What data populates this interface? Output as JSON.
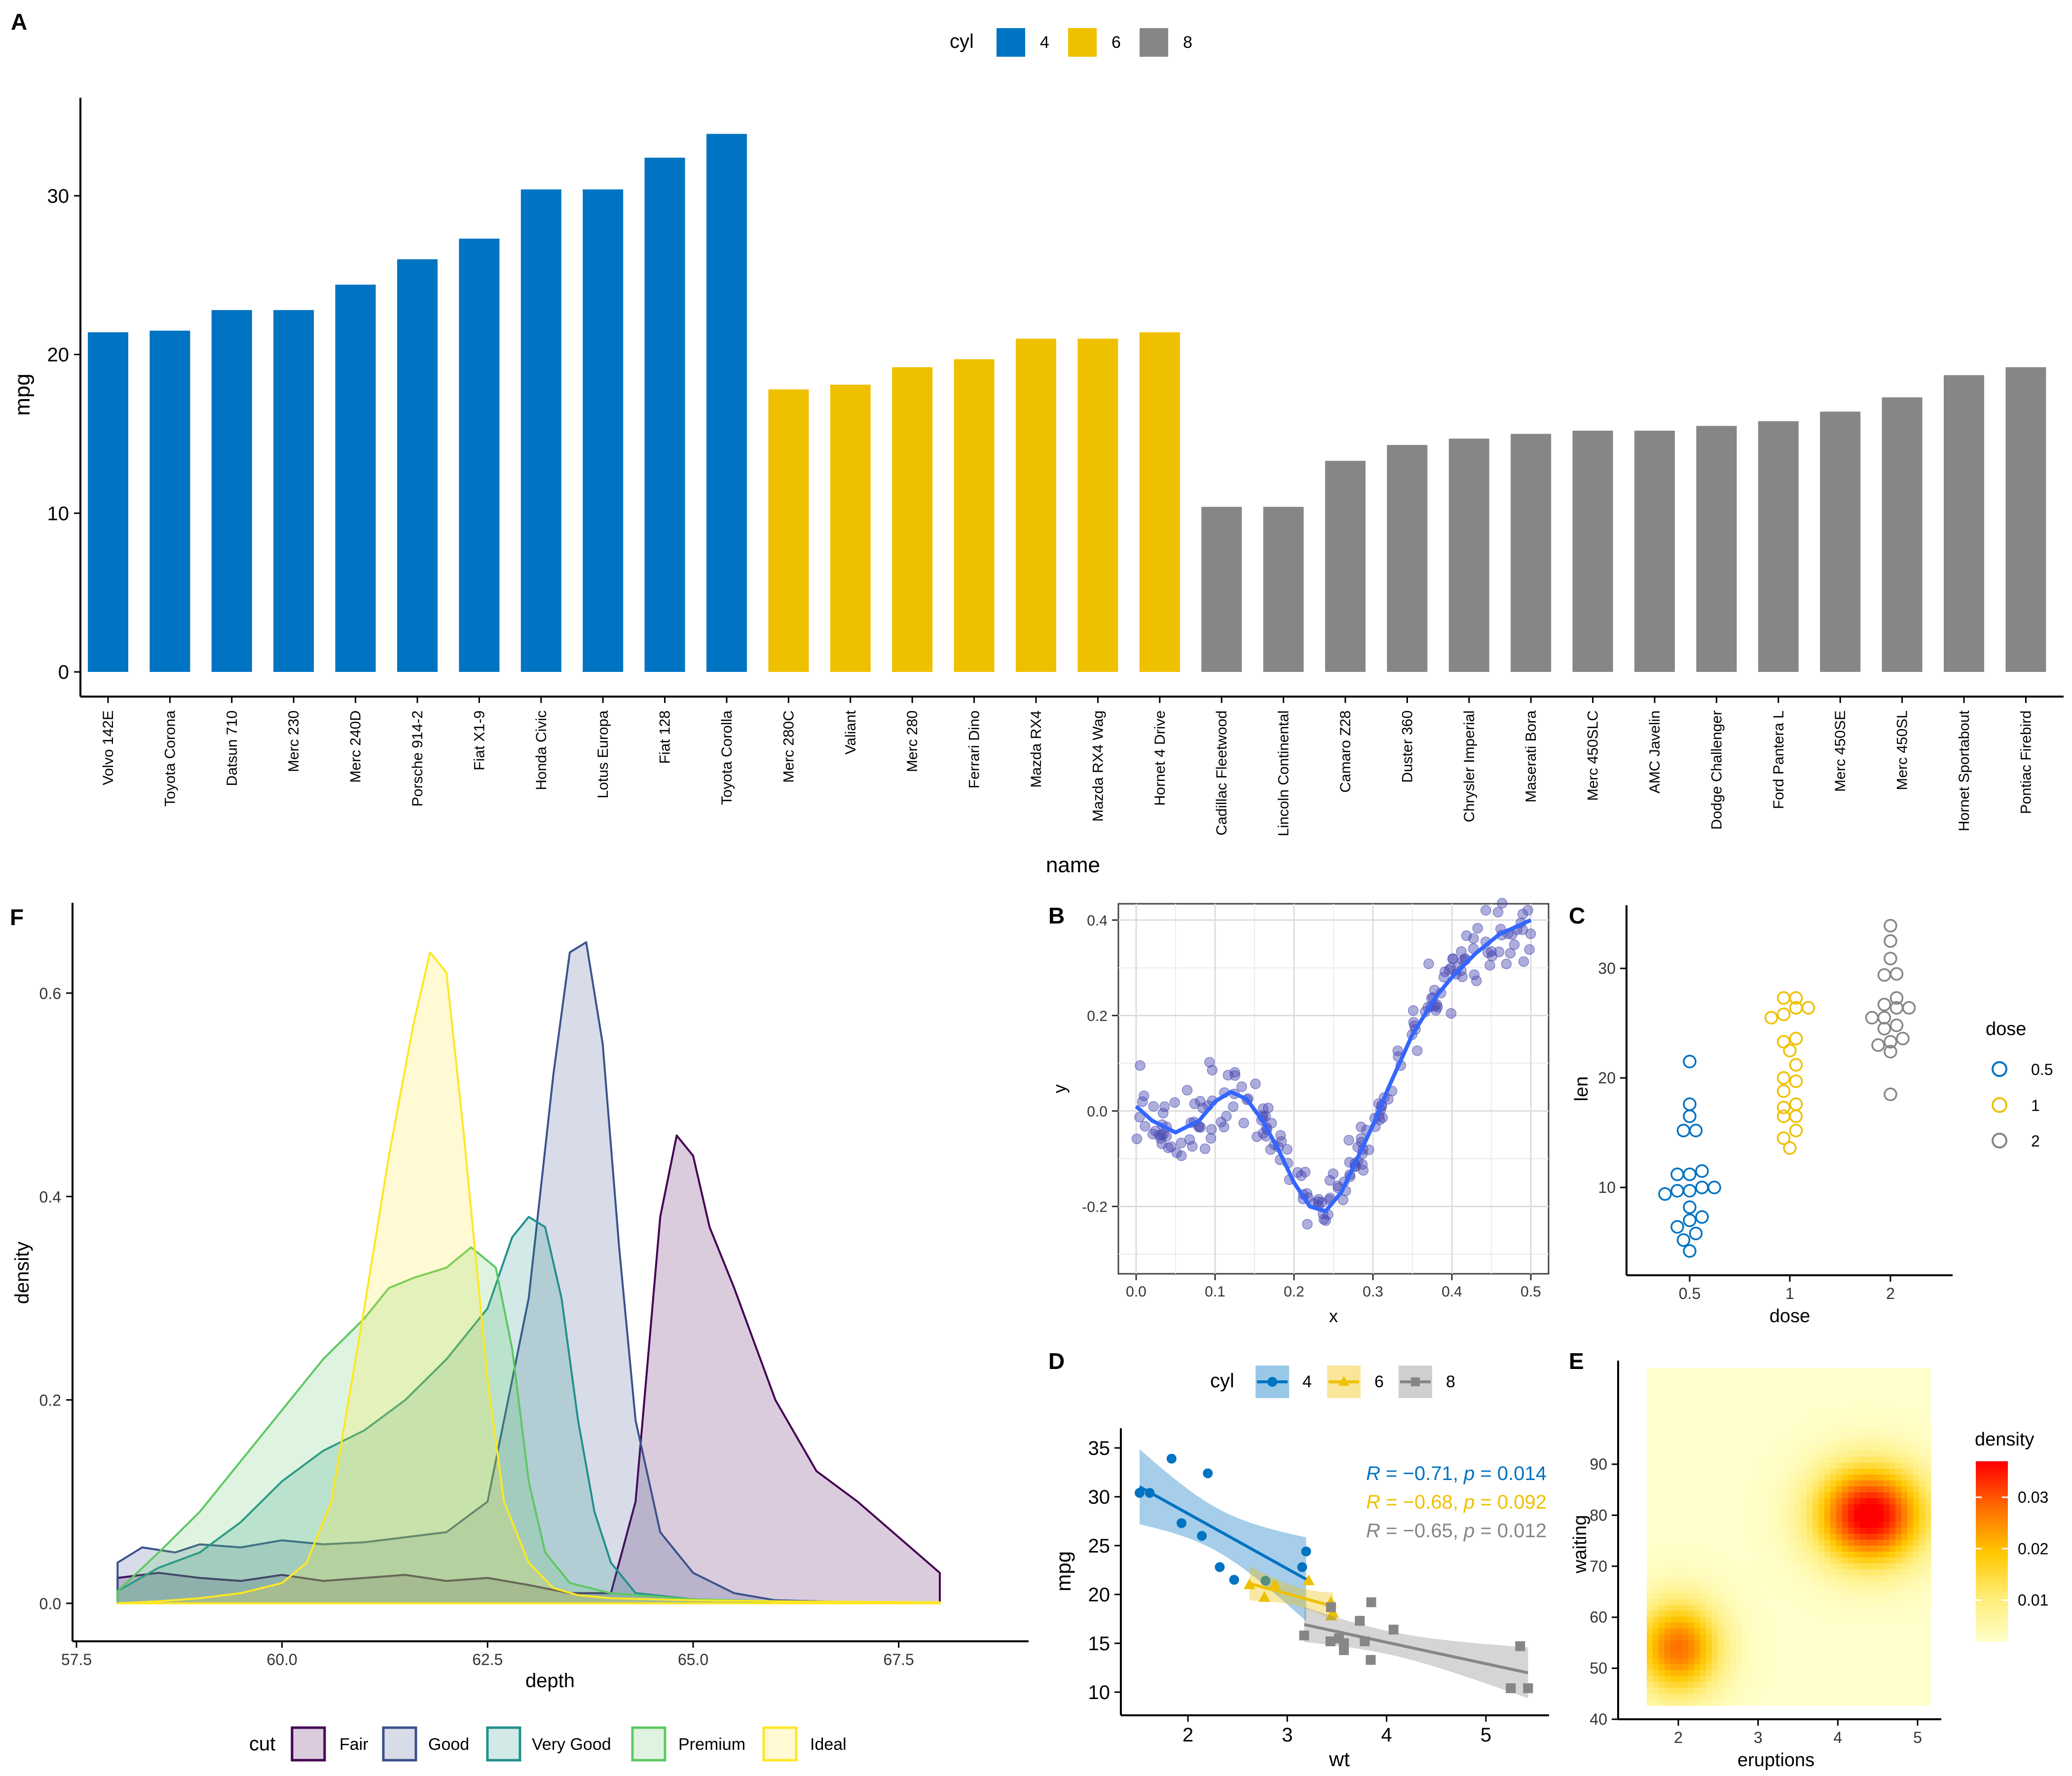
{
  "panels": {
    "A": "A",
    "B": "B",
    "C": "C",
    "D": "D",
    "E": "E",
    "F": "F"
  },
  "colors": {
    "cyl4": "#0073C2",
    "cyl6": "#EFC000",
    "cyl8": "#868686",
    "smooth": "#3366FF",
    "point": "#4B4BB4",
    "fair": "#440154",
    "good": "#3B528B",
    "verygood": "#21908C",
    "premium": "#5DC863",
    "ideal": "#FDE725"
  },
  "chart_data": [
    {
      "panel": "A",
      "type": "bar",
      "xlabel": "name",
      "ylabel": "mpg",
      "ylim": [
        0,
        35
      ],
      "yticks": [
        0,
        10,
        20,
        30
      ],
      "legend": {
        "title": "cyl",
        "position": "top",
        "entries": [
          "4",
          "6",
          "8"
        ]
      },
      "categories": [
        "Volvo 142E",
        "Toyota Corona",
        "Datsun 710",
        "Merc 230",
        "Merc 240D",
        "Porsche 914-2",
        "Fiat X1-9",
        "Honda Civic",
        "Lotus Europa",
        "Fiat 128",
        "Toyota Corolla",
        "Merc 280C",
        "Valiant",
        "Merc 280",
        "Ferrari Dino",
        "Mazda RX4",
        "Mazda RX4 Wag",
        "Hornet 4 Drive",
        "Cadillac Fleetwood",
        "Lincoln Continental",
        "Camaro Z28",
        "Duster 360",
        "Chrysler Imperial",
        "Maserati Bora",
        "Merc 450SLC",
        "AMC Javelin",
        "Dodge Challenger",
        "Ford Pantera L",
        "Merc 450SE",
        "Merc 450SL",
        "Hornet Sportabout",
        "Pontiac Firebird"
      ],
      "values": [
        21.4,
        21.5,
        22.8,
        22.8,
        24.4,
        26.0,
        27.3,
        30.4,
        30.4,
        32.4,
        33.9,
        17.8,
        18.1,
        19.2,
        19.7,
        21.0,
        21.0,
        21.4,
        10.4,
        10.4,
        13.3,
        14.3,
        14.7,
        15.0,
        15.2,
        15.2,
        15.5,
        15.8,
        16.4,
        17.3,
        18.7,
        19.2
      ],
      "groups": [
        "4",
        "4",
        "4",
        "4",
        "4",
        "4",
        "4",
        "4",
        "4",
        "4",
        "4",
        "6",
        "6",
        "6",
        "6",
        "6",
        "6",
        "6",
        "8",
        "8",
        "8",
        "8",
        "8",
        "8",
        "8",
        "8",
        "8",
        "8",
        "8",
        "8",
        "8",
        "8"
      ]
    },
    {
      "panel": "F",
      "type": "area",
      "xlabel": "depth",
      "ylabel": "density",
      "xlim": [
        57.5,
        68.2
      ],
      "ylim": [
        0,
        0.67
      ],
      "xticks": [
        "57.5",
        "60.0",
        "62.5",
        "65.0",
        "67.5"
      ],
      "yticks": [
        "0.0",
        "0.2",
        "0.4",
        "0.6"
      ],
      "legend": {
        "title": "cut",
        "position": "bottom",
        "entries": [
          "Fair",
          "Good",
          "Very Good",
          "Premium",
          "Ideal"
        ]
      },
      "series": [
        {
          "name": "Fair",
          "x": [
            58,
            58.5,
            59,
            59.5,
            60,
            60.5,
            61,
            61.5,
            62,
            62.5,
            63,
            63.5,
            64,
            64.3,
            64.6,
            64.8,
            65,
            65.2,
            65.5,
            66,
            66.5,
            67,
            67.5,
            68
          ],
          "values": [
            0.025,
            0.03,
            0.025,
            0.022,
            0.028,
            0.022,
            0.025,
            0.028,
            0.022,
            0.025,
            0.018,
            0.01,
            0.01,
            0.1,
            0.38,
            0.46,
            0.44,
            0.37,
            0.31,
            0.2,
            0.13,
            0.1,
            0.065,
            0.03
          ]
        },
        {
          "name": "Good",
          "x": [
            58,
            58.3,
            58.7,
            59,
            59.5,
            60,
            60.5,
            61,
            61.5,
            62,
            62.5,
            63,
            63.3,
            63.5,
            63.7,
            63.9,
            64.1,
            64.3,
            64.6,
            65,
            65.5,
            66,
            67,
            68
          ],
          "values": [
            0.04,
            0.055,
            0.05,
            0.058,
            0.055,
            0.062,
            0.058,
            0.06,
            0.065,
            0.07,
            0.1,
            0.3,
            0.52,
            0.64,
            0.65,
            0.55,
            0.35,
            0.18,
            0.07,
            0.03,
            0.01,
            0.003,
            0.001,
            0
          ]
        },
        {
          "name": "Very Good",
          "x": [
            58,
            58.5,
            59,
            59.5,
            60,
            60.5,
            61,
            61.5,
            62,
            62.5,
            62.8,
            63,
            63.2,
            63.4,
            63.6,
            63.8,
            64,
            64.3,
            65,
            66,
            68
          ],
          "values": [
            0.012,
            0.035,
            0.05,
            0.08,
            0.12,
            0.15,
            0.17,
            0.2,
            0.24,
            0.29,
            0.36,
            0.38,
            0.37,
            0.3,
            0.18,
            0.09,
            0.04,
            0.01,
            0.004,
            0.001,
            0
          ]
        },
        {
          "name": "Premium",
          "x": [
            58,
            58.5,
            59,
            59.5,
            60,
            60.5,
            61,
            61.3,
            61.6,
            62,
            62.3,
            62.6,
            62.8,
            63,
            63.2,
            63.5,
            64,
            65,
            66,
            68
          ],
          "values": [
            0.012,
            0.05,
            0.09,
            0.14,
            0.19,
            0.24,
            0.28,
            0.31,
            0.32,
            0.33,
            0.35,
            0.33,
            0.25,
            0.12,
            0.05,
            0.02,
            0.01,
            0.004,
            0.002,
            0
          ]
        },
        {
          "name": "Ideal",
          "x": [
            58,
            58.5,
            59,
            59.5,
            60,
            60.3,
            60.6,
            61,
            61.3,
            61.6,
            61.8,
            62,
            62.2,
            62.5,
            62.7,
            63,
            63.3,
            63.6,
            64,
            65,
            66,
            68
          ],
          "values": [
            0,
            0.002,
            0.005,
            0.01,
            0.02,
            0.04,
            0.1,
            0.29,
            0.44,
            0.57,
            0.64,
            0.62,
            0.47,
            0.22,
            0.1,
            0.04,
            0.015,
            0.008,
            0.005,
            0.003,
            0.002,
            0.001
          ]
        }
      ]
    },
    {
      "panel": "B",
      "type": "scatter",
      "xlabel": "x",
      "ylabel": "y",
      "xlim": [
        -0.02,
        0.52
      ],
      "ylim": [
        -0.31,
        0.42
      ],
      "xticks": [
        "0.0",
        "0.1",
        "0.2",
        "0.3",
        "0.4",
        "0.5"
      ],
      "yticks": [
        "-0.2",
        "0.0",
        "0.2",
        "0.4"
      ],
      "grid": true,
      "smooth": {
        "x": [
          0,
          0.02,
          0.05,
          0.08,
          0.1,
          0.12,
          0.14,
          0.16,
          0.18,
          0.2,
          0.22,
          0.24,
          0.26,
          0.28,
          0.3,
          0.32,
          0.35,
          0.38,
          0.4,
          0.43,
          0.46,
          0.5
        ],
        "y": [
          0.01,
          -0.02,
          -0.045,
          -0.02,
          0.02,
          0.04,
          0.025,
          -0.02,
          -0.08,
          -0.15,
          -0.2,
          -0.21,
          -0.17,
          -0.1,
          -0.03,
          0.05,
          0.16,
          0.24,
          0.28,
          0.33,
          0.37,
          0.4
        ]
      }
    },
    {
      "panel": "C",
      "type": "scatter",
      "xlabel": "dose",
      "ylabel": "len",
      "categories": [
        "0.5",
        "1",
        "2"
      ],
      "ylim": [
        2.5,
        35.5
      ],
      "yticks": [
        "10",
        "20",
        "30"
      ],
      "legend": {
        "title": "dose",
        "position": "right",
        "entries": [
          "0.5",
          "1",
          "2"
        ]
      },
      "series": [
        {
          "name": "0.5",
          "values": [
            4.2,
            5.2,
            5.8,
            6.4,
            7.0,
            7.3,
            8.2,
            9.4,
            9.7,
            9.7,
            10.0,
            10.0,
            11.2,
            11.2,
            11.5,
            15.2,
            15.2,
            16.5,
            17.6,
            21.5
          ]
        },
        {
          "name": "1",
          "values": [
            13.6,
            14.5,
            15.2,
            16.5,
            16.5,
            17.3,
            17.6,
            18.8,
            19.7,
            20.0,
            21.2,
            22.5,
            23.3,
            23.6,
            25.5,
            25.8,
            26.4,
            26.4,
            27.3,
            27.3
          ]
        },
        {
          "name": "2",
          "values": [
            18.5,
            22.4,
            23.0,
            23.3,
            23.6,
            24.5,
            24.8,
            25.5,
            25.5,
            26.4,
            26.4,
            26.7,
            27.3,
            29.4,
            29.5,
            30.9,
            32.5,
            33.9
          ]
        }
      ]
    },
    {
      "panel": "D",
      "type": "scatter",
      "xlabel": "wt",
      "ylabel": "mpg",
      "xlim": [
        1.35,
        5.6
      ],
      "ylim": [
        9,
        36
      ],
      "xticks": [
        "2",
        "3",
        "4",
        "5"
      ],
      "yticks": [
        "10",
        "15",
        "20",
        "25",
        "30",
        "35"
      ],
      "legend": {
        "title": "cyl",
        "position": "top",
        "entries": [
          "4",
          "6",
          "8"
        ]
      },
      "annotations": [
        {
          "group": "4",
          "R": "-0.71",
          "p": "0.014"
        },
        {
          "group": "6",
          "R": "-0.68",
          "p": "0.092"
        },
        {
          "group": "8",
          "R": "-0.65",
          "p": "0.012"
        }
      ],
      "series": [
        {
          "name": "4",
          "x": [
            2.32,
            3.19,
            3.15,
            2.2,
            1.615,
            1.835,
            2.465,
            1.935,
            2.14,
            1.513,
            2.78
          ],
          "y": [
            22.8,
            24.4,
            22.8,
            32.4,
            30.4,
            33.9,
            21.5,
            27.3,
            26.0,
            30.4,
            21.4
          ]
        },
        {
          "name": "6",
          "x": [
            2.62,
            2.875,
            3.215,
            3.46,
            3.44,
            3.44,
            2.77
          ],
          "y": [
            21.0,
            21.0,
            21.4,
            18.1,
            19.2,
            17.8,
            19.7
          ]
        },
        {
          "name": "8",
          "x": [
            3.44,
            3.57,
            4.07,
            3.73,
            3.78,
            5.25,
            5.424,
            5.345,
            3.52,
            3.435,
            3.84,
            3.845,
            3.17,
            3.57
          ],
          "y": [
            18.7,
            14.3,
            16.4,
            17.3,
            15.2,
            10.4,
            10.4,
            14.7,
            15.5,
            15.2,
            13.3,
            19.2,
            15.8,
            15.0
          ]
        }
      ]
    },
    {
      "panel": "E",
      "type": "heatmap",
      "xlabel": "eruptions",
      "ylabel": "waiting",
      "xlim": [
        1.4,
        5.3
      ],
      "ylim": [
        40,
        98
      ],
      "xticks": [
        "2",
        "3",
        "4",
        "5"
      ],
      "yticks": [
        "40",
        "50",
        "60",
        "70",
        "80",
        "90"
      ],
      "legend": {
        "title": "density",
        "position": "right",
        "entries": [
          "0.03",
          "0.02",
          "0.01"
        ]
      },
      "modes": [
        {
          "x": 2.0,
          "y": 54,
          "peak": 0.026
        },
        {
          "x": 4.4,
          "y": 80,
          "peak": 0.037
        }
      ]
    }
  ]
}
